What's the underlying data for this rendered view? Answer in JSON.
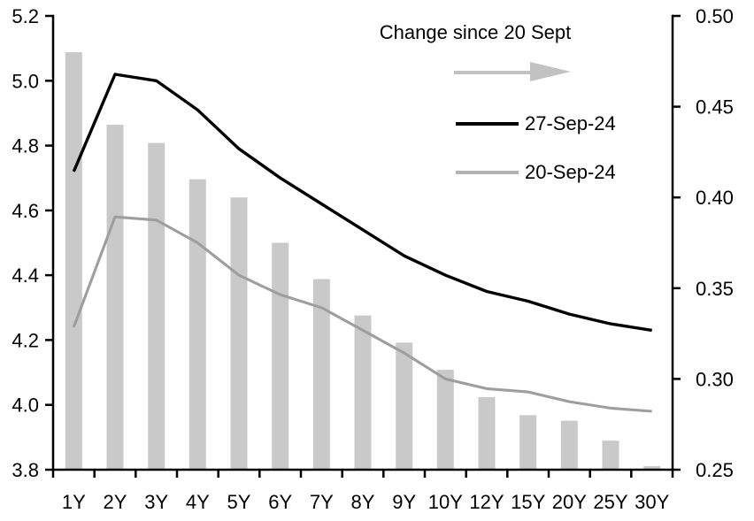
{
  "chart_data": {
    "type": "bar",
    "subtype": "bar-line-combo",
    "title": "",
    "categories": [
      "1Y",
      "2Y",
      "3Y",
      "4Y",
      "5Y",
      "6Y",
      "7Y",
      "8Y",
      "9Y",
      "10Y",
      "12Y",
      "15Y",
      "20Y",
      "25Y",
      "30Y"
    ],
    "series": [
      {
        "name": "Change since 20 Sept",
        "type": "bar",
        "axis": "right",
        "color": "#c9c9c9",
        "values": [
          0.48,
          0.44,
          0.43,
          0.41,
          0.4,
          0.375,
          0.355,
          0.335,
          0.32,
          0.305,
          0.29,
          0.28,
          0.277,
          0.266,
          0.252
        ]
      },
      {
        "name": "27-Sep-24",
        "type": "line",
        "axis": "left",
        "color": "#000000",
        "values": [
          4.72,
          5.02,
          5.0,
          4.91,
          4.79,
          4.7,
          4.62,
          4.54,
          4.46,
          4.4,
          4.35,
          4.32,
          4.28,
          4.25,
          4.23
        ]
      },
      {
        "name": "20-Sep-24",
        "type": "line",
        "axis": "left",
        "color": "#9e9e9e",
        "values": [
          4.24,
          4.58,
          4.57,
          4.5,
          4.4,
          4.34,
          4.3,
          4.23,
          4.16,
          4.08,
          4.05,
          4.04,
          4.01,
          3.99,
          3.98
        ]
      }
    ],
    "left_axis": {
      "min": 3.8,
      "max": 5.2,
      "step": 0.2,
      "tick_labels": [
        "5.2",
        "5.0",
        "4.8",
        "4.6",
        "4.4",
        "4.2",
        "4.0",
        "3.8"
      ]
    },
    "right_axis": {
      "min": 0.25,
      "max": 0.5,
      "step": 0.05,
      "tick_labels": [
        "0.50",
        "0.45",
        "0.40",
        "0.35",
        "0.30",
        "0.25"
      ]
    },
    "grid": "off",
    "legend": {
      "position": "top-right-inside",
      "title": "Change since 20 Sept",
      "arrow_color": "#c2c2c2",
      "entries": [
        {
          "label": "27-Sep-24",
          "color": "#000000"
        },
        {
          "label": "20-Sep-24",
          "color": "#b2b2b2"
        }
      ]
    }
  }
}
